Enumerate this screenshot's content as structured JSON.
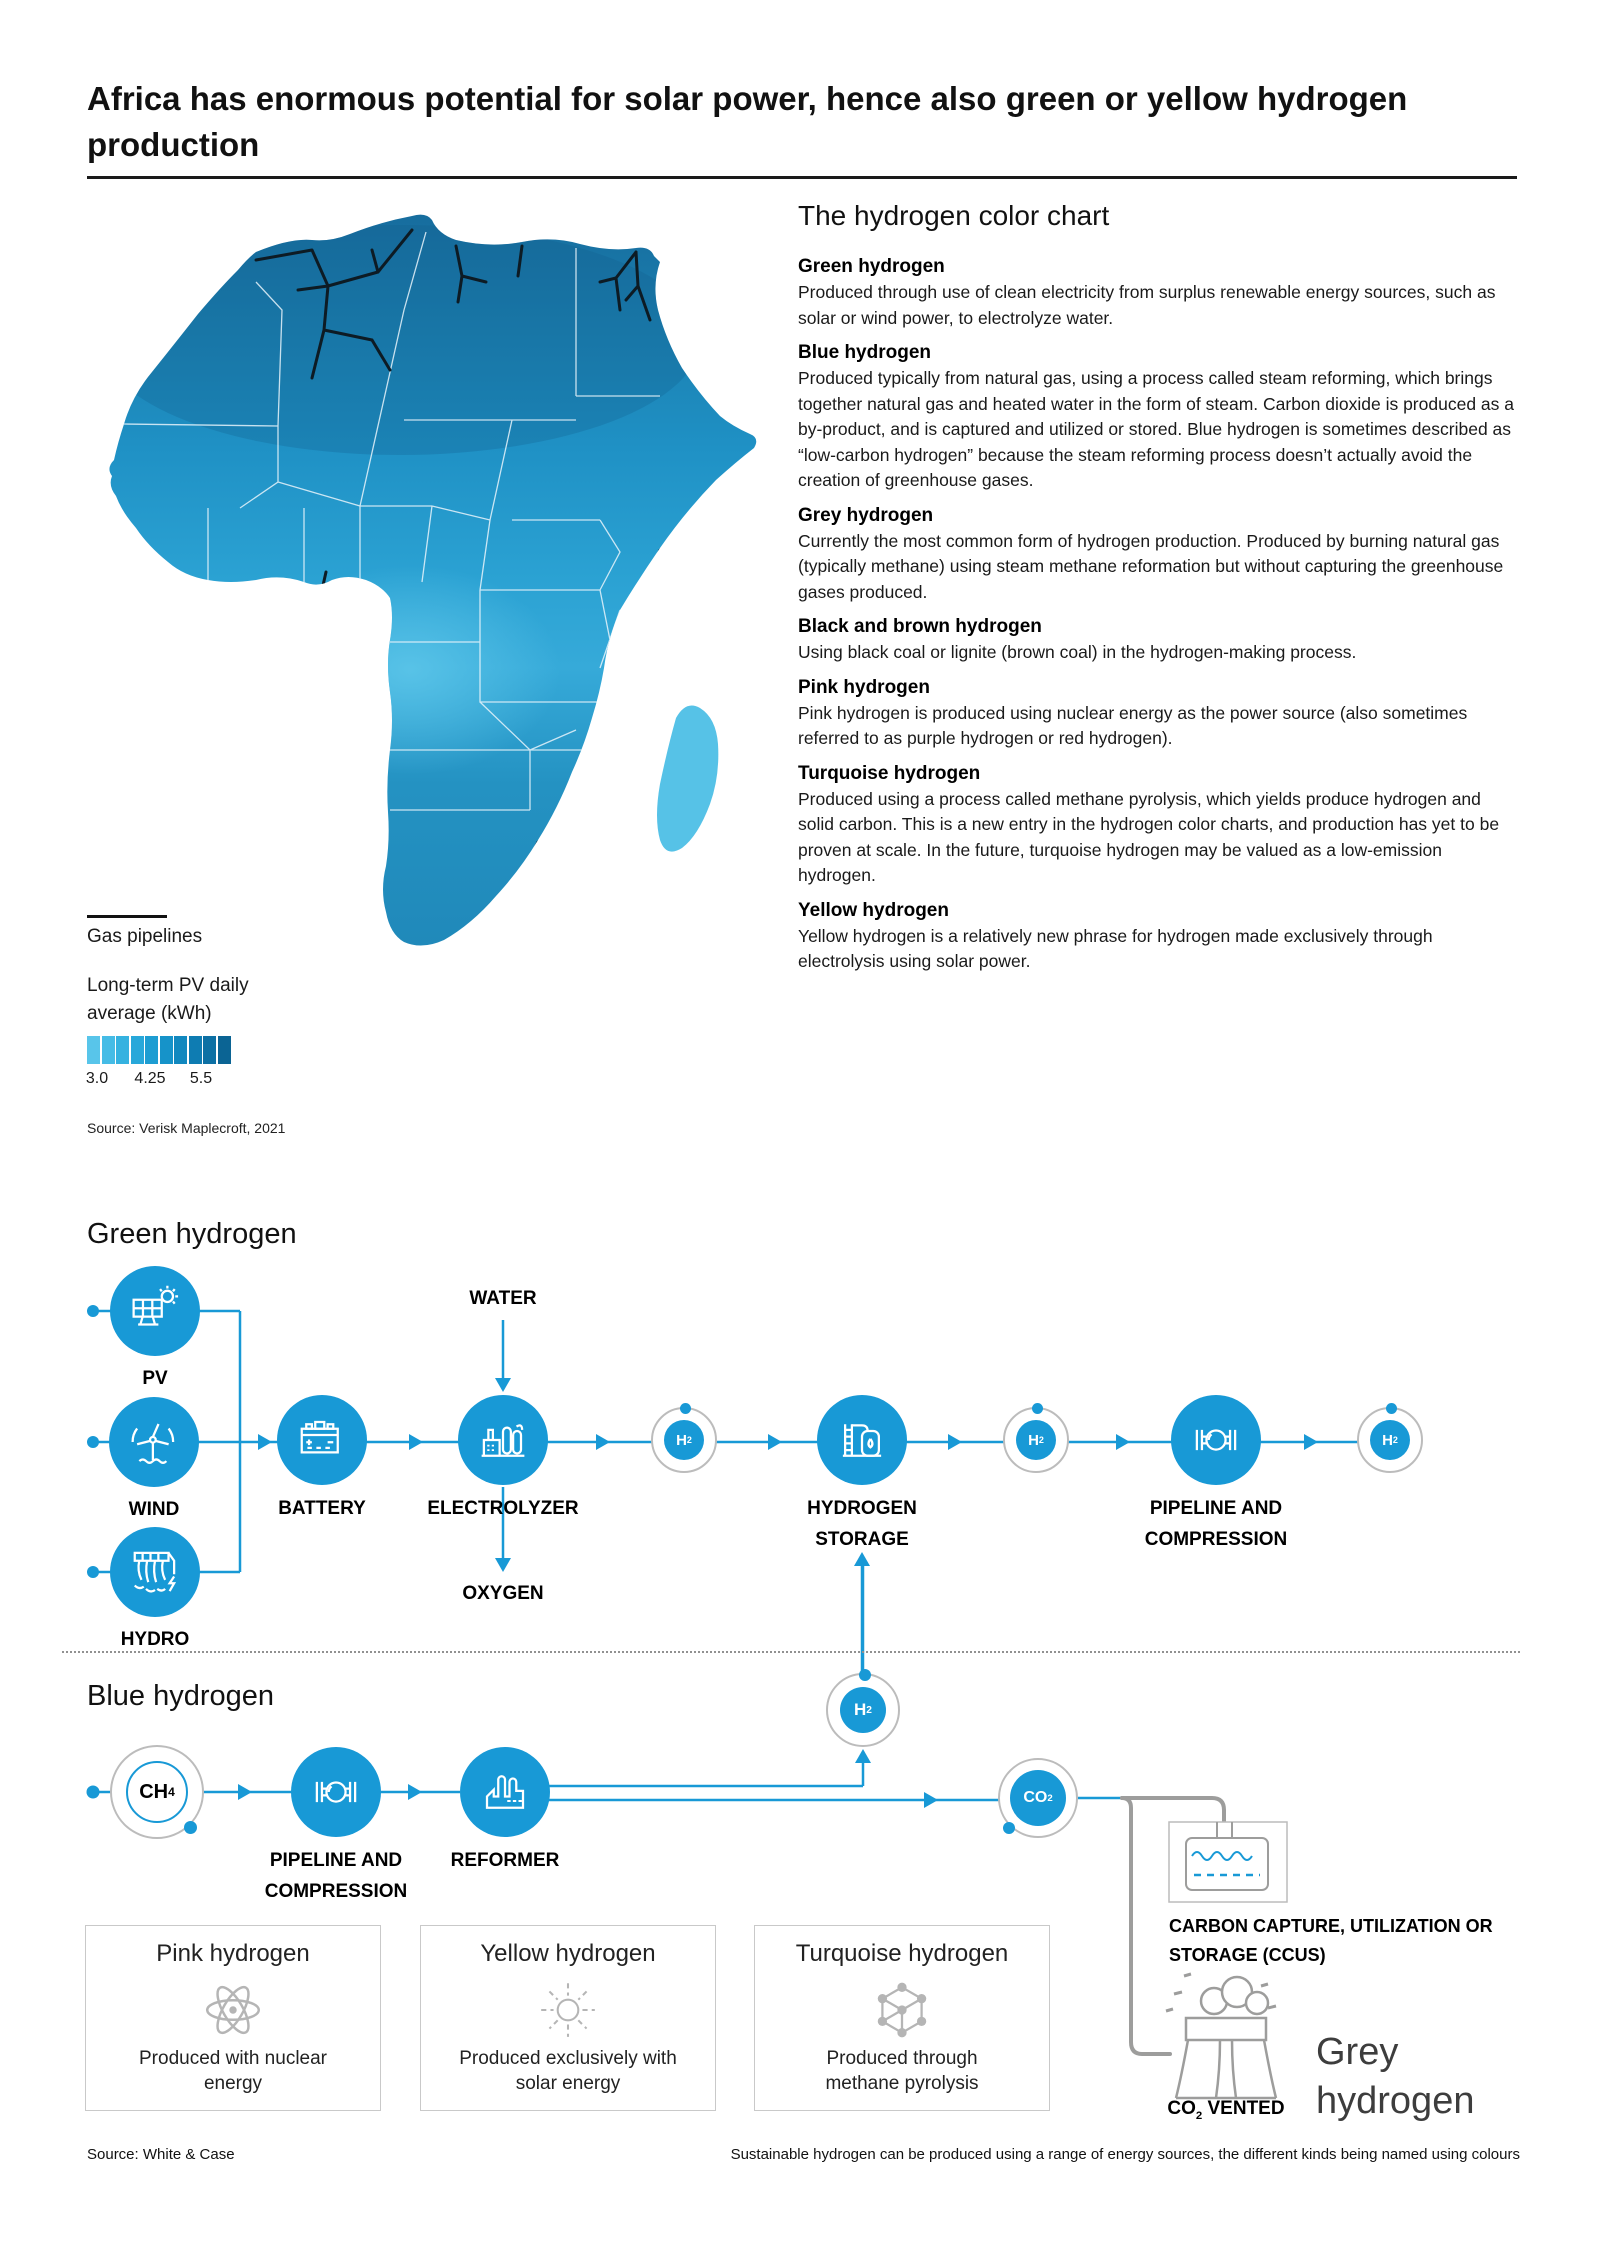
{
  "title": "Africa has enormous potential for solar power, hence also green or yellow hydrogen production",
  "map": {
    "legend_gas": "Gas pipelines",
    "legend_pv_line1": "Long-term PV daily",
    "legend_pv_line2": "average (kWh)",
    "scale_labels": [
      "3.0",
      "4.25",
      "5.5"
    ],
    "scale_colors": [
      "#58c5ea",
      "#45bce6",
      "#35b2e0",
      "#28a8da",
      "#1d9dd2",
      "#1693c9",
      "#1188bf",
      "#0e7cb2",
      "#0c70a4",
      "#0b6494"
    ],
    "source": "Source: Verisk Maplecroft, 2021"
  },
  "color_chart": {
    "title": "The hydrogen color chart",
    "entries": [
      {
        "name": "Green hydrogen",
        "text": "Produced through use of clean electricity from surplus renewable energy sources, such as solar or wind power, to electrolyze water."
      },
      {
        "name": "Blue hydrogen",
        "text": "Produced typically from natural gas, using a process called steam reforming, which brings together natural gas and heated water in the form of steam. Carbon dioxide is produced as a by-product, and is captured and utilized or stored. Blue hydrogen is sometimes described as “low-carbon hydrogen” because the steam reforming process doesn’t actually avoid the creation of greenhouse gases."
      },
      {
        "name": "Grey hydrogen",
        "text": "Currently the most common form of hydrogen production. Produced by burning natural gas (typically methane) using steam methane reformation but without capturing the greenhouse gases produced."
      },
      {
        "name": "Black and brown hydrogen",
        "text": "Using black coal or lignite (brown coal) in the hydrogen-making process."
      },
      {
        "name": "Pink hydrogen",
        "text": "Pink hydrogen is produced using nuclear energy as the power source (also sometimes referred to as purple hydrogen or red hydrogen)."
      },
      {
        "name": "Turquoise hydrogen",
        "text": "Produced using a process called methane pyrolysis, which yields produce hydrogen and solid carbon. This is a new entry in the hydrogen color charts, and production has yet to be proven at scale. In the future, turquoise hydrogen may be valued as a low-emission hydrogen."
      },
      {
        "name": "Yellow hydrogen",
        "text": "Yellow hydrogen is a relatively new phrase for hydrogen made exclusively through electrolysis using solar power."
      }
    ]
  },
  "green": {
    "heading": "Green hydrogen",
    "pv": "PV",
    "wind": "WIND",
    "hydro": "HYDRO",
    "battery": "BATTERY",
    "electrolyzer": "ELECTROLYZER",
    "storage": "HYDROGEN STORAGE",
    "pipeline": "PIPELINE AND COMPRESSION",
    "water": "WATER",
    "oxygen": "OXYGEN"
  },
  "blue": {
    "heading": "Blue hydrogen",
    "pipeline": "PIPELINE AND COMPRESSION",
    "reformer": "REFORMER",
    "ccus": "CARBON CAPTURE, UTILIZATION OR STORAGE (CCUS)",
    "vented_base": "CO",
    "vented_sub": "2",
    "vented_rest": " VENTED",
    "grey_title": "Grey hydrogen"
  },
  "molecules": {
    "h2_base": "H",
    "h2_sub": "2",
    "ch4_base": "CH",
    "ch4_sub": "4",
    "co2_base": "CO",
    "co2_sub": "2"
  },
  "boxes": [
    {
      "title": "Pink hydrogen",
      "text": "Produced with nuclear energy"
    },
    {
      "title": "Yellow hydrogen",
      "text": "Produced exclusively with solar energy"
    },
    {
      "title": "Turquoise hydrogen",
      "text": "Produced through methane pyrolysis"
    }
  ],
  "footer": {
    "source": "Source: White & Case",
    "caption": "Sustainable hydrogen can be produced using a range of energy sources, the different kinds being named using colours"
  },
  "colors": {
    "accent": "#1899d6",
    "grey_line": "#9d9d9c",
    "ring_grey": "#bcbcbc",
    "icon_grey": "#b5b5b5"
  }
}
